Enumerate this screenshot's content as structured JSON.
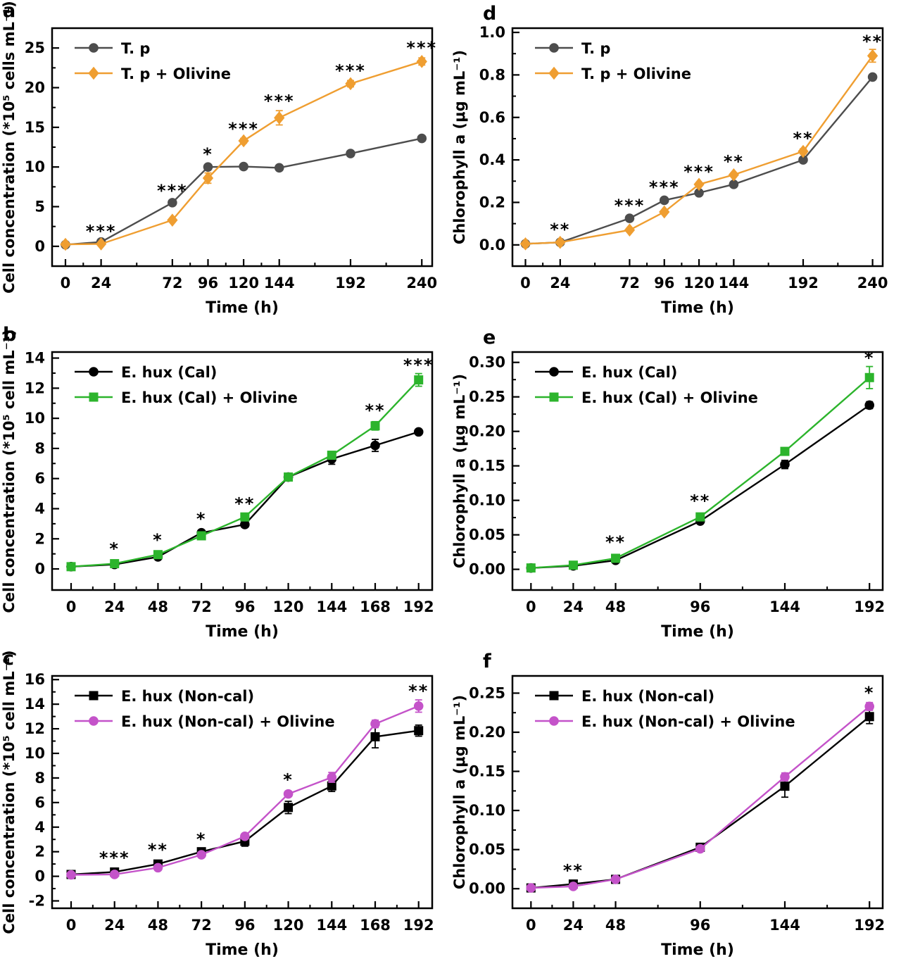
{
  "chart_data": {
    "type": "line",
    "figure_description": "Six-panel growth figure: cell concentration and chlorophyll a over time for T. p and E. hux cultures with and without olivine",
    "panels": [
      {
        "letter": "a",
        "xlabel": "Time (h)",
        "ylabel": "Cell concentration (*10⁵ cells mL⁻¹)",
        "x_range": [
          -9,
          247
        ],
        "y_range": [
          -2.5,
          27.5
        ],
        "x_ticks": [
          0,
          24,
          72,
          96,
          120,
          144,
          192,
          240
        ],
        "y_ticks": [
          0,
          5,
          10,
          15,
          20,
          25
        ],
        "y_tick_labels": [
          "0",
          "5",
          "10",
          "15",
          "20",
          "25"
        ],
        "margin_left": 74,
        "legend_position": "top-left",
        "series": [
          {
            "name": "T. p",
            "color": "#4d4d4d",
            "marker": "circle",
            "x": [
              0,
              24,
              72,
              96,
              120,
              144,
              192,
              240
            ],
            "y": [
              0.2,
              0.55,
              5.5,
              10.0,
              10.05,
              9.9,
              11.7,
              13.6
            ],
            "err": [
              0.1,
              0.12,
              0.2,
              0.25,
              0.2,
              0.2,
              0.25,
              0.3
            ]
          },
          {
            "name": "T. p + Olivine",
            "color": "#ef9e31",
            "marker": "diamond",
            "x": [
              0,
              24,
              72,
              96,
              120,
              144,
              192,
              240
            ],
            "y": [
              0.25,
              0.3,
              3.3,
              8.6,
              13.3,
              16.2,
              20.5,
              23.3
            ],
            "err": [
              0.1,
              0.1,
              0.2,
              0.65,
              0.3,
              0.9,
              0.4,
              0.45
            ]
          }
        ],
        "significance": [
          {
            "x": 24,
            "y": 1.2,
            "label": "***"
          },
          {
            "x": 72,
            "y": 6.3,
            "label": "***"
          },
          {
            "x": 96,
            "y": 10.9,
            "label": "*"
          },
          {
            "x": 120,
            "y": 14.1,
            "label": "***"
          },
          {
            "x": 144,
            "y": 17.6,
            "label": "***"
          },
          {
            "x": 192,
            "y": 21.4,
            "label": "***"
          },
          {
            "x": 240,
            "y": 24.3,
            "label": "***"
          }
        ]
      },
      {
        "letter": "d",
        "xlabel": "Time (h)",
        "ylabel": "Chlorophyll a  (μg mL⁻¹)",
        "x_range": [
          -9,
          247
        ],
        "y_range": [
          -0.1,
          1.02
        ],
        "x_ticks": [
          0,
          24,
          72,
          96,
          120,
          144,
          192,
          240
        ],
        "y_ticks": [
          0.0,
          0.2,
          0.4,
          0.6,
          0.8,
          1.0
        ],
        "y_tick_labels": [
          "0.0",
          "0.2",
          "0.4",
          "0.6",
          "0.8",
          "1.0"
        ],
        "margin_left": 88,
        "legend_position": "top-left",
        "series": [
          {
            "name": "T. p",
            "color": "#4d4d4d",
            "marker": "circle",
            "x": [
              0,
              24,
              72,
              96,
              120,
              144,
              192,
              240
            ],
            "y": [
              0.005,
              0.012,
              0.125,
              0.21,
              0.245,
              0.285,
              0.4,
              0.79
            ],
            "err": [
              0.003,
              0.003,
              0.005,
              0.006,
              0.006,
              0.006,
              0.008,
              0.012
            ]
          },
          {
            "name": "T. p + Olivine",
            "color": "#ef9e31",
            "marker": "diamond",
            "x": [
              0,
              24,
              72,
              96,
              120,
              144,
              192,
              240
            ],
            "y": [
              0.005,
              0.012,
              0.07,
              0.155,
              0.285,
              0.33,
              0.44,
              0.89
            ],
            "err": [
              0.003,
              0.003,
              0.005,
              0.006,
              0.008,
              0.008,
              0.012,
              0.03
            ]
          }
        ],
        "significance": [
          {
            "x": 24,
            "y": 0.045,
            "label": "**"
          },
          {
            "x": 72,
            "y": 0.158,
            "label": "***"
          },
          {
            "x": 96,
            "y": 0.245,
            "label": "***"
          },
          {
            "x": 120,
            "y": 0.318,
            "label": "***"
          },
          {
            "x": 144,
            "y": 0.365,
            "label": "**"
          },
          {
            "x": 192,
            "y": 0.475,
            "label": "**"
          },
          {
            "x": 240,
            "y": 0.93,
            "label": "**"
          }
        ]
      },
      {
        "letter": "b",
        "xlabel": "Time (h)",
        "ylabel": "Cell concentration (*10⁵ cell mL⁻¹)",
        "x_range": [
          -10.5,
          199.5
        ],
        "y_range": [
          -1.4,
          14.4
        ],
        "x_ticks": [
          0,
          24,
          48,
          72,
          96,
          120,
          144,
          168,
          192
        ],
        "y_ticks": [
          0,
          2,
          4,
          6,
          8,
          10,
          12,
          14
        ],
        "y_tick_labels": [
          "0",
          "2",
          "4",
          "6",
          "8",
          "10",
          "12",
          "14"
        ],
        "margin_left": 74,
        "legend_position": "top-left",
        "series": [
          {
            "name": "E. hux (Cal)",
            "color": "#000000",
            "marker": "circle",
            "x": [
              0,
              24,
              48,
              72,
              96,
              120,
              144,
              168,
              192
            ],
            "y": [
              0.15,
              0.3,
              0.8,
              2.4,
              2.95,
              6.1,
              7.3,
              8.2,
              9.1
            ],
            "err": [
              0.08,
              0.08,
              0.12,
              0.12,
              0.18,
              0.22,
              0.35,
              0.4,
              0.15
            ]
          },
          {
            "name": "E. hux (Cal) + Olivine",
            "color": "#2cb42c",
            "marker": "square",
            "x": [
              0,
              24,
              48,
              72,
              96,
              120,
              144,
              168,
              192
            ],
            "y": [
              0.15,
              0.35,
              0.95,
              2.2,
              3.45,
              6.1,
              7.55,
              9.5,
              12.55
            ],
            "err": [
              0.08,
              0.08,
              0.1,
              0.12,
              0.18,
              0.2,
              0.2,
              0.28,
              0.42
            ]
          }
        ],
        "significance": [
          {
            "x": 24,
            "y": 0.95,
            "label": "*"
          },
          {
            "x": 48,
            "y": 1.55,
            "label": "*"
          },
          {
            "x": 72,
            "y": 2.95,
            "label": "*"
          },
          {
            "x": 96,
            "y": 3.95,
            "label": "**"
          },
          {
            "x": 168,
            "y": 10.15,
            "label": "**"
          },
          {
            "x": 192,
            "y": 13.15,
            "label": "***"
          }
        ]
      },
      {
        "letter": "e",
        "xlabel": "Time (h)",
        "ylabel": "Chlorophyll a  (μg mL⁻¹)",
        "x_range": [
          -10.5,
          199.5
        ],
        "y_range": [
          -0.03,
          0.315
        ],
        "x_ticks": [
          0,
          24,
          48,
          96,
          144,
          192
        ],
        "y_ticks": [
          0.0,
          0.05,
          0.1,
          0.15,
          0.2,
          0.25,
          0.3
        ],
        "y_tick_labels": [
          "0.00",
          "0.05",
          "0.10",
          "0.15",
          "0.20",
          "0.25",
          "0.30"
        ],
        "margin_left": 88,
        "legend_position": "top-left",
        "series": [
          {
            "name": "E. hux (Cal)",
            "color": "#000000",
            "marker": "circle",
            "x": [
              0,
              24,
              48,
              96,
              144,
              192
            ],
            "y": [
              0.002,
              0.005,
              0.013,
              0.07,
              0.152,
              0.238
            ],
            "err": [
              0.001,
              0.001,
              0.002,
              0.003,
              0.006,
              0.005
            ]
          },
          {
            "name": "E. hux (Cal) + Olivine",
            "color": "#2cb42c",
            "marker": "square",
            "x": [
              0,
              24,
              48,
              96,
              144,
              192
            ],
            "y": [
              0.002,
              0.006,
              0.016,
              0.076,
              0.171,
              0.278
            ],
            "err": [
              0.001,
              0.001,
              0.002,
              0.003,
              0.005,
              0.016
            ]
          }
        ],
        "significance": [
          {
            "x": 48,
            "y": 0.031,
            "label": "**"
          },
          {
            "x": 96,
            "y": 0.091,
            "label": "**"
          },
          {
            "x": 192,
            "y": 0.298,
            "label": "*"
          }
        ]
      },
      {
        "letter": "c",
        "xlabel": "Time (h)",
        "ylabel": "Cell concentration (*10⁵ cell mL⁻¹)",
        "x_range": [
          -10.5,
          199.5
        ],
        "y_range": [
          -2.6,
          16.3
        ],
        "x_ticks": [
          0,
          24,
          48,
          72,
          96,
          120,
          144,
          168,
          192
        ],
        "y_ticks": [
          -2,
          0,
          2,
          4,
          6,
          8,
          10,
          12,
          14,
          16
        ],
        "y_tick_labels": [
          "-2",
          "0",
          "2",
          "4",
          "6",
          "8",
          "10",
          "12",
          "14",
          "16"
        ],
        "margin_left": 74,
        "legend_position": "top-left",
        "series": [
          {
            "name": "E. hux (Non-cal)",
            "color": "#000000",
            "marker": "square",
            "x": [
              0,
              24,
              48,
              72,
              96,
              120,
              144,
              168,
              192
            ],
            "y": [
              0.15,
              0.35,
              1.0,
              2.0,
              2.85,
              5.6,
              7.35,
              11.35,
              11.85
            ],
            "err": [
              0.1,
              0.12,
              0.15,
              0.2,
              0.4,
              0.5,
              0.45,
              0.9,
              0.45
            ]
          },
          {
            "name": "E. hux (Non-cal) + Olivine",
            "color": "#c453c9",
            "marker": "circle",
            "x": [
              0,
              24,
              48,
              72,
              96,
              120,
              144,
              168,
              192
            ],
            "y": [
              0.12,
              0.15,
              0.7,
              1.75,
              3.25,
              6.7,
              8.05,
              12.4,
              13.85
            ],
            "err": [
              0.08,
              0.1,
              0.12,
              0.15,
              0.2,
              0.22,
              0.4,
              0.3,
              0.5
            ]
          }
        ],
        "significance": [
          {
            "x": 24,
            "y": 1.05,
            "label": "***"
          },
          {
            "x": 48,
            "y": 1.7,
            "label": "**"
          },
          {
            "x": 72,
            "y": 2.55,
            "label": "*"
          },
          {
            "x": 120,
            "y": 7.4,
            "label": "*"
          },
          {
            "x": 192,
            "y": 14.6,
            "label": "**"
          }
        ]
      },
      {
        "letter": "f",
        "xlabel": "Time (h)",
        "ylabel": "Chlorophyll a  (μg mL⁻¹)",
        "x_range": [
          -10.5,
          199.5
        ],
        "y_range": [
          -0.025,
          0.272
        ],
        "x_ticks": [
          0,
          24,
          48,
          96,
          144,
          192
        ],
        "y_ticks": [
          0.0,
          0.05,
          0.1,
          0.15,
          0.2,
          0.25
        ],
        "y_tick_labels": [
          "0.00",
          "0.05",
          "0.10",
          "0.15",
          "0.20",
          "0.25"
        ],
        "margin_left": 88,
        "legend_position": "top-left",
        "series": [
          {
            "name": "E. hux (Non-cal)",
            "color": "#000000",
            "marker": "square",
            "x": [
              0,
              24,
              48,
              96,
              144,
              192
            ],
            "y": [
              0.001,
              0.006,
              0.012,
              0.053,
              0.131,
              0.22
            ],
            "err": [
              0.001,
              0.002,
              0.002,
              0.002,
              0.014,
              0.009
            ]
          },
          {
            "name": "E. hux (Non-cal) + Olivine",
            "color": "#c453c9",
            "marker": "circle",
            "x": [
              0,
              24,
              48,
              96,
              144,
              192
            ],
            "y": [
              0.001,
              0.003,
              0.012,
              0.051,
              0.143,
              0.233
            ],
            "err": [
              0.001,
              0.003,
              0.002,
              0.002,
              0.005,
              0.005
            ]
          }
        ],
        "significance": [
          {
            "x": 24,
            "y": 0.016,
            "label": "**"
          },
          {
            "x": 192,
            "y": 0.243,
            "label": "*"
          }
        ]
      }
    ]
  }
}
